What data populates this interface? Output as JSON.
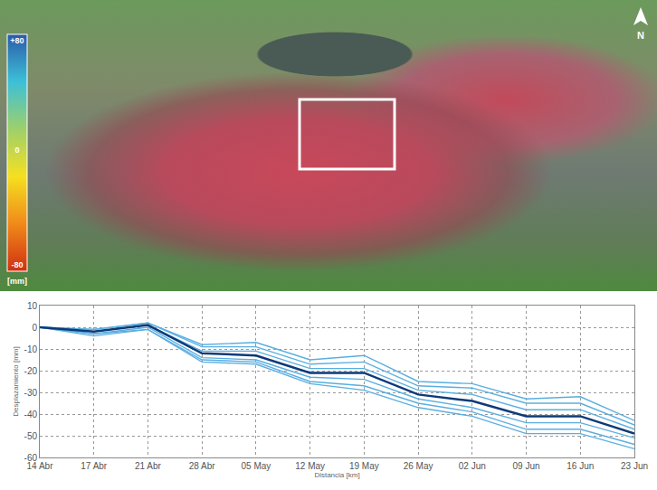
{
  "chart_data": {
    "type": "line",
    "x_label": "Distancia [km]",
    "y_label": "Desplazamiento [mm]",
    "categories": [
      "14 Abr",
      "17 Abr",
      "21 Abr",
      "28 Abr",
      "05 May",
      "12 May",
      "19 May",
      "26 May",
      "02 Jun",
      "09 Jun",
      "16 Jun",
      "23 Jun"
    ],
    "series": [
      {
        "color": "#5aaee0",
        "values": [
          0,
          -1,
          2,
          -8,
          -7,
          -15,
          -13,
          -25,
          -26,
          -33,
          -32,
          -43
        ]
      },
      {
        "color": "#5aaee0",
        "values": [
          0,
          -1,
          2,
          -9,
          -9,
          -17,
          -16,
          -27,
          -28,
          -35,
          -35,
          -45
        ]
      },
      {
        "color": "#5aaee0",
        "values": [
          0,
          -2,
          1,
          -11,
          -11,
          -19,
          -19,
          -29,
          -31,
          -38,
          -38,
          -47
        ]
      },
      {
        "color": "#5aaee0",
        "values": [
          0,
          -3,
          0,
          -14,
          -15,
          -23,
          -24,
          -33,
          -37,
          -44,
          -44,
          -51
        ]
      },
      {
        "color": "#5aaee0",
        "values": [
          0,
          -3,
          -1,
          -15,
          -16,
          -25,
          -27,
          -35,
          -39,
          -47,
          -47,
          -54
        ]
      },
      {
        "color": "#5aaee0",
        "values": [
          0,
          -4,
          -1,
          -16,
          -17,
          -26,
          -29,
          -37,
          -41,
          -49,
          -49,
          -56
        ]
      },
      {
        "color": "#0d3a78",
        "values": [
          0,
          -2,
          1,
          -12,
          -13,
          -21,
          -21,
          -31,
          -34,
          -41,
          -41,
          -49
        ]
      }
    ],
    "ylim": [
      -60,
      10
    ],
    "yticks": [
      -60,
      -50,
      -40,
      -30,
      -20,
      -10,
      0,
      10
    ],
    "grid": true
  },
  "map": {
    "north": "N",
    "colorbar": {
      "title": "[mm]",
      "range": [
        -80,
        80
      ],
      "ticks": [
        {
          "value": 80,
          "label": "+80"
        },
        0,
        -80
      ],
      "colors": [
        "#d03010",
        "#f08a1a",
        "#f5e020",
        "#9ed06a",
        "#3cc0d8",
        "#2a5aa8"
      ]
    }
  }
}
